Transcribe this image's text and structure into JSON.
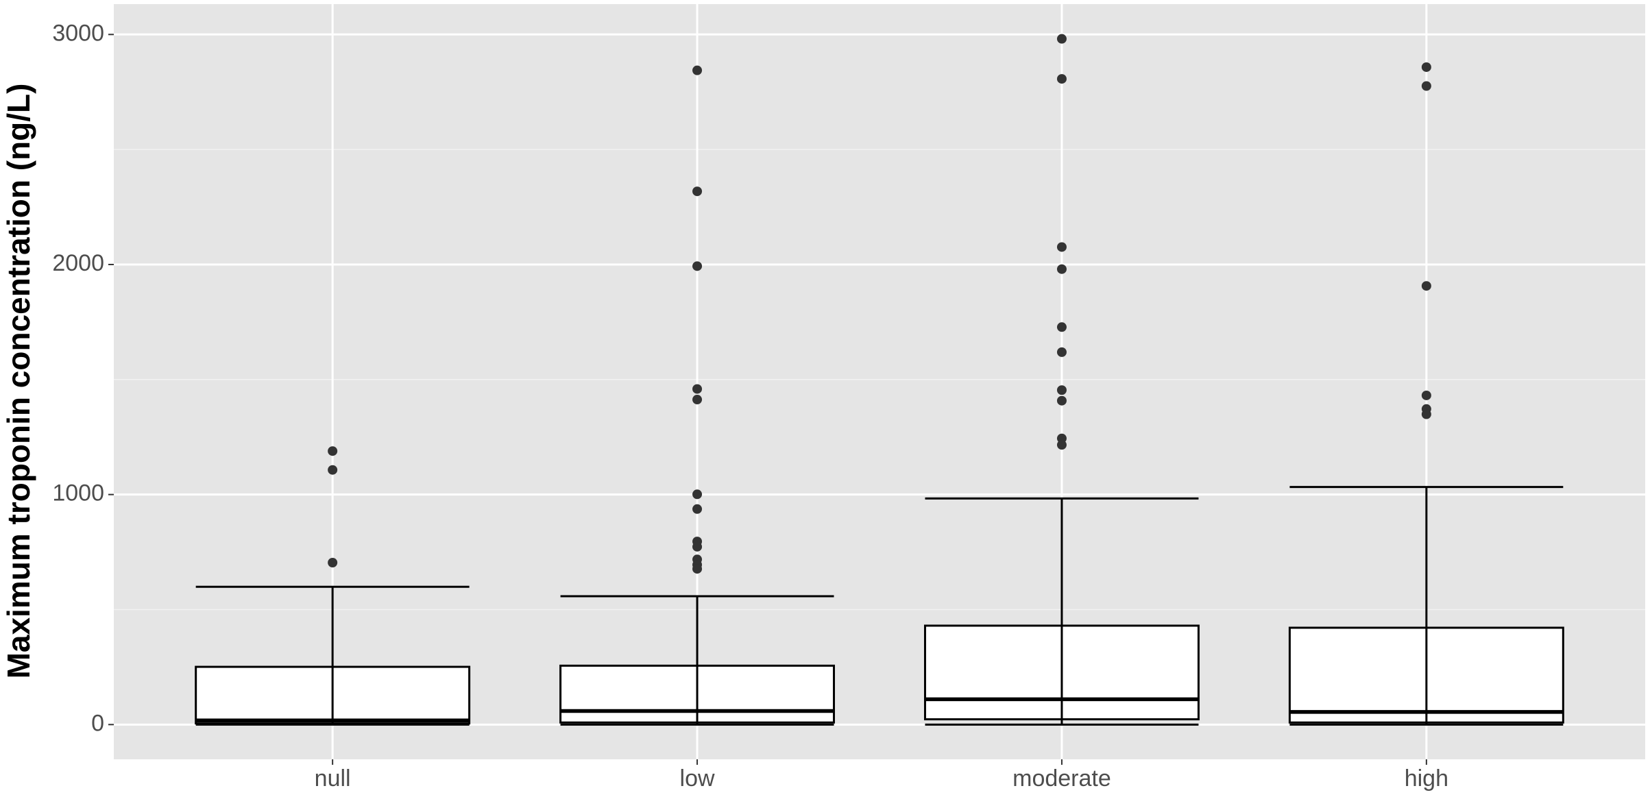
{
  "chart_data": {
    "type": "boxplot",
    "y_label": "Maximum troponin concentration (ng/L)",
    "categories": [
      "null",
      "low",
      "moderate",
      "high"
    ],
    "boxes": [
      {
        "min": 0,
        "q1": 5,
        "median": 18,
        "q3": 251,
        "max": 599,
        "outliers": [
          1189,
          1107,
          704
        ]
      },
      {
        "min": 0,
        "q1": 9,
        "median": 59,
        "q3": 256,
        "max": 558,
        "outliers": [
          2844,
          2318,
          1993,
          1459,
          1413,
          1001,
          937,
          796,
          773,
          718,
          695,
          677
        ]
      },
      {
        "min": 0,
        "q1": 23,
        "median": 110,
        "q3": 430,
        "max": 983,
        "outliers": [
          2981,
          2807,
          2076,
          1980,
          1728,
          1619,
          1454,
          1408,
          1244,
          1216
        ]
      },
      {
        "min": 0,
        "q1": 9,
        "median": 55,
        "q3": 421,
        "max": 1033,
        "outliers": [
          2858,
          2776,
          1907,
          1431,
          1372,
          1349
        ]
      }
    ],
    "ylim": [
      -151,
      3132
    ],
    "yticks": [
      0,
      1000,
      2000,
      3000
    ],
    "y_minor_ticks": [
      500,
      1500,
      2500
    ],
    "grid": true,
    "box_color": "#ffffff",
    "outlier_color": "#333333"
  }
}
